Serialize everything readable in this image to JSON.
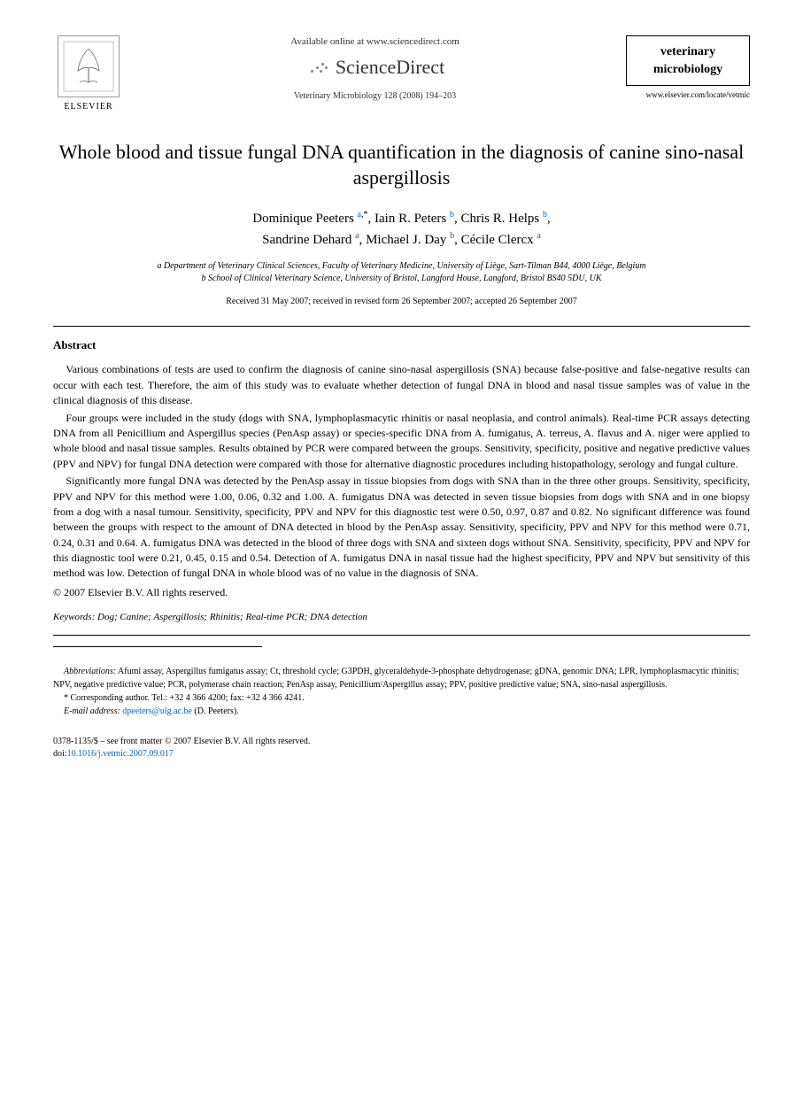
{
  "header": {
    "publisher_name": "ELSEVIER",
    "available_text": "Available online at www.sciencedirect.com",
    "platform_name": "ScienceDirect",
    "journal_reference": "Veterinary Microbiology 128 (2008) 194–203",
    "journal_box_line1": "veterinary",
    "journal_box_line2": "microbiology",
    "journal_url": "www.elsevier.com/locate/vetmic"
  },
  "article": {
    "title": "Whole blood and tissue fungal DNA quantification in the diagnosis of canine sino-nasal aspergillosis",
    "authors_html": "Dominique Peeters <sup><a href='#'>a</a>,*</sup>, Iain R. Peters <sup><a href='#'>b</a></sup>, Chris R. Helps <sup><a href='#'>b</a></sup>,<br>Sandrine Dehard <sup><a href='#'>a</a></sup>, Michael J. Day <sup><a href='#'>b</a></sup>, Cécile Clercx <sup><a href='#'>a</a></sup>",
    "affiliations": [
      "a Department of Veterinary Clinical Sciences, Faculty of Veterinary Medicine, University of Liège, Sart-Tilman B44, 4000 Liège, Belgium",
      "b School of Clinical Veterinary Science, University of Bristol, Langford House, Langford, Bristol BS40 5DU, UK"
    ],
    "dates": "Received 31 May 2007; received in revised form 26 September 2007; accepted 26 September 2007"
  },
  "abstract": {
    "heading": "Abstract",
    "paragraphs": [
      "Various combinations of tests are used to confirm the diagnosis of canine sino-nasal aspergillosis (SNA) because false-positive and false-negative results can occur with each test. Therefore, the aim of this study was to evaluate whether detection of fungal DNA in blood and nasal tissue samples was of value in the clinical diagnosis of this disease.",
      "Four groups were included in the study (dogs with SNA, lymphoplasmacytic rhinitis or nasal neoplasia, and control animals). Real-time PCR assays detecting DNA from all Penicillium and Aspergillus species (PenAsp assay) or species-specific DNA from A. fumigatus, A. terreus, A. flavus and A. niger were applied to whole blood and nasal tissue samples. Results obtained by PCR were compared between the groups. Sensitivity, specificity, positive and negative predictive values (PPV and NPV) for fungal DNA detection were compared with those for alternative diagnostic procedures including histopathology, serology and fungal culture.",
      "Significantly more fungal DNA was detected by the PenAsp assay in tissue biopsies from dogs with SNA than in the three other groups. Sensitivity, specificity, PPV and NPV for this method were 1.00, 0.06, 0.32 and 1.00. A. fumigatus DNA was detected in seven tissue biopsies from dogs with SNA and in one biopsy from a dog with a nasal tumour. Sensitivity, specificity, PPV and NPV for this diagnostic test were 0.50, 0.97, 0.87 and 0.82. No significant difference was found between the groups with respect to the amount of DNA detected in blood by the PenAsp assay. Sensitivity, specificity, PPV and NPV for this method were 0.71, 0.24, 0.31 and 0.64. A. fumigatus DNA was detected in the blood of three dogs with SNA and sixteen dogs without SNA. Sensitivity, specificity, PPV and NPV for this diagnostic tool were 0.21, 0.45, 0.15 and 0.54. Detection of A. fumigatus DNA in nasal tissue had the highest specificity, PPV and NPV but sensitivity of this method was low. Detection of fungal DNA in whole blood was of no value in the diagnosis of SNA."
    ],
    "copyright": "© 2007 Elsevier B.V. All rights reserved."
  },
  "keywords": {
    "label": "Keywords:",
    "text": "Dog; Canine; Aspergillosis; Rhinitis; Real-time PCR; DNA detection"
  },
  "footnotes": {
    "abbreviations_label": "Abbreviations:",
    "abbreviations_text": "Afumi assay, Aspergillus fumigatus assay; Ct, threshold cycle; G3PDH, glyceraldehyde-3-phosphate dehydrogenase; gDNA, genomic DNA; LPR, lymphoplasmacytic rhinitis; NPV, negative predictive value; PCR, polymerase chain reaction; PenAsp assay, Penicillium/Aspergillus assay; PPV, positive predictive value; SNA, sino-nasal aspergillosis.",
    "corresponding_label": "* Corresponding author.",
    "corresponding_text": "Tel.: +32 4 366 4200; fax: +32 4 366 4241.",
    "email_label": "E-mail address:",
    "email": "dpeeters@ulg.ac.be",
    "email_attribution": "(D. Peeters)."
  },
  "footer": {
    "issn_line": "0378-1135/$ – see front matter © 2007 Elsevier B.V. All rights reserved.",
    "doi_label": "doi:",
    "doi": "10.1016/j.vetmic.2007.09.017"
  },
  "colors": {
    "link": "#0066cc",
    "text": "#000000",
    "background": "#ffffff"
  },
  "typography": {
    "title_fontsize": 22,
    "author_fontsize": 15,
    "body_fontsize": 12,
    "footnote_fontsize": 10
  }
}
